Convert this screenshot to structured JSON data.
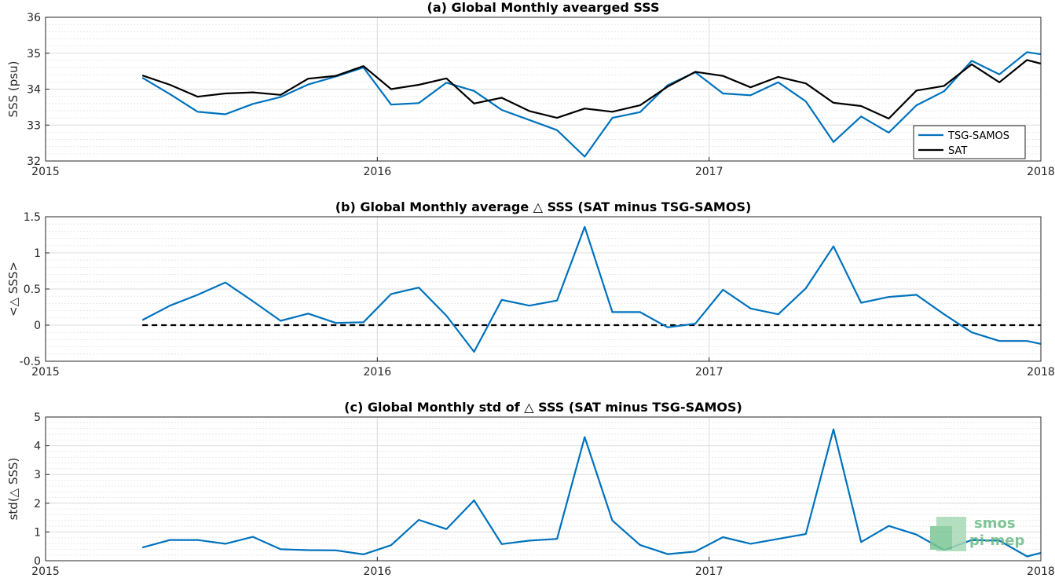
{
  "chart_data": [
    {
      "type": "line",
      "title": "(a) Global Monthly avearged SSS",
      "ylabel": "SSS (psu)",
      "xlim": [
        2015,
        2018
      ],
      "ylim": [
        32,
        36
      ],
      "yticks": [
        "32",
        "33",
        "34",
        "35",
        "36"
      ],
      "xticks": [
        "2015",
        "2016",
        "2017",
        "2018"
      ],
      "grid": true,
      "legend": "bottom-right",
      "x_start_year": 2015,
      "x_start_month": 4,
      "series": [
        {
          "name": "TSG-SAMOS",
          "color": "#0072bd",
          "values": [
            34.32,
            33.86,
            33.37,
            33.3,
            33.59,
            33.78,
            34.13,
            34.35,
            34.6,
            33.57,
            33.61,
            34.18,
            33.95,
            33.42,
            33.14,
            32.86,
            32.12,
            33.2,
            33.36,
            34.11,
            34.47,
            33.88,
            33.83,
            34.19,
            33.66,
            32.53,
            33.24,
            32.79,
            33.55,
            33.94,
            34.79,
            34.41,
            35.03,
            34.97
          ]
        },
        {
          "name": "SAT",
          "color": "#000000",
          "values": [
            34.38,
            34.12,
            33.79,
            33.88,
            33.91,
            33.84,
            34.29,
            34.37,
            34.64,
            34.0,
            34.12,
            34.3,
            33.6,
            33.76,
            33.39,
            33.2,
            33.46,
            33.37,
            33.55,
            34.07,
            34.48,
            34.37,
            34.05,
            34.34,
            34.16,
            33.62,
            33.53,
            33.18,
            33.96,
            34.09,
            34.69,
            34.19,
            34.81,
            34.71
          ]
        }
      ]
    },
    {
      "type": "line",
      "title": "(b) Global Monthly average △ SSS (SAT minus TSG-SAMOS)",
      "ylabel": "<△ SSS>",
      "xlim": [
        2015,
        2018
      ],
      "ylim": [
        -0.5,
        1.5
      ],
      "yticks": [
        "-0.5",
        "0",
        "0.5",
        "1",
        "1.5"
      ],
      "xticks": [
        "2015",
        "2016",
        "2017",
        "2018"
      ],
      "grid": true,
      "zero_line": true,
      "x_start_year": 2015,
      "x_start_month": 4,
      "series": [
        {
          "color": "#0072bd",
          "values": [
            0.07,
            0.27,
            0.42,
            0.59,
            0.33,
            0.06,
            0.16,
            0.03,
            0.04,
            0.43,
            0.52,
            0.13,
            -0.37,
            0.35,
            0.27,
            0.34,
            1.36,
            0.18,
            0.18,
            -0.03,
            0.02,
            0.49,
            0.23,
            0.15,
            0.51,
            1.09,
            0.31,
            0.39,
            0.42,
            0.15,
            -0.1,
            -0.22,
            -0.22,
            -0.26
          ]
        }
      ]
    },
    {
      "type": "line",
      "title": "(c) Global Monthly std of △ SSS (SAT minus TSG-SAMOS)",
      "ylabel": "std(△ SSS)",
      "xlim": [
        2015,
        2018
      ],
      "ylim": [
        0,
        5
      ],
      "yticks": [
        "0",
        "1",
        "2",
        "3",
        "4",
        "5"
      ],
      "xticks": [
        "2015",
        "2016",
        "2017",
        "2018"
      ],
      "grid": true,
      "x_start_year": 2015,
      "x_start_month": 4,
      "series": [
        {
          "color": "#0072bd",
          "values": [
            0.46,
            0.72,
            0.72,
            0.59,
            0.83,
            0.4,
            0.37,
            0.36,
            0.22,
            0.54,
            1.42,
            1.1,
            2.1,
            0.58,
            0.7,
            0.76,
            4.3,
            1.4,
            0.55,
            0.23,
            0.32,
            0.82,
            0.59,
            0.76,
            0.93,
            4.57,
            0.65,
            1.21,
            0.91,
            0.37,
            0.72,
            0.7,
            0.15,
            0.27
          ]
        }
      ]
    }
  ],
  "logo": {
    "line1": "smos",
    "line2": "pi-mep"
  }
}
